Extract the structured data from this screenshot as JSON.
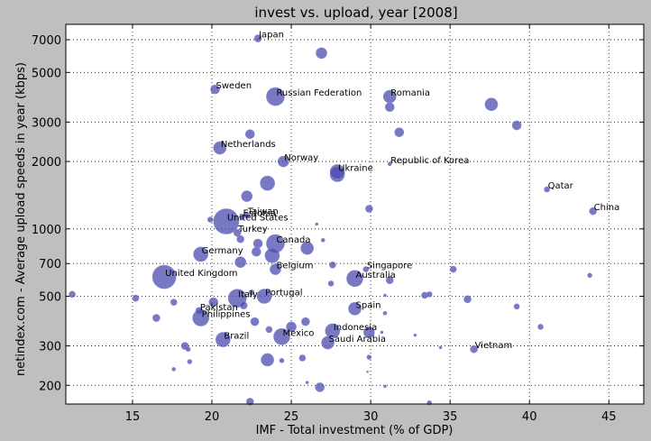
{
  "chart_data": {
    "type": "scatter",
    "title": "invest vs. upload, year [2008]",
    "xlabel": "IMF - Total investment (% of GDP)",
    "ylabel": "netindex.com - Average upload speeds in year (kbps)",
    "xlim": [
      10.8,
      47.2
    ],
    "ylim": [
      165,
      8200
    ],
    "y_scale": "log",
    "grid": true,
    "x_ticks": [
      15,
      20,
      25,
      30,
      35,
      40,
      45
    ],
    "y_ticks": [
      200,
      300,
      500,
      700,
      1000,
      2000,
      3000,
      5000,
      7000
    ],
    "colors": {
      "bubble": "#4b4baf",
      "background": "#bfbfbf",
      "plot_area": "#ffffff"
    },
    "labeled_points": [
      {
        "label": "Japan",
        "x": 22.9,
        "y": 7100,
        "r": 4
      },
      {
        "label": "Sweden",
        "x": 20.2,
        "y": 4200,
        "r": 5
      },
      {
        "label": "Russian Federation",
        "x": 24.0,
        "y": 3900,
        "r": 10
      },
      {
        "label": "Romania",
        "x": 31.2,
        "y": 3900,
        "r": 7
      },
      {
        "label": "Netherlands",
        "x": 20.5,
        "y": 2300,
        "r": 7
      },
      {
        "label": "Norway",
        "x": 24.5,
        "y": 2000,
        "r": 6
      },
      {
        "label": "Republic of Korea",
        "x": 31.2,
        "y": 1950,
        "r": 2
      },
      {
        "label": "Ukraine",
        "x": 27.9,
        "y": 1800,
        "r": 8
      },
      {
        "label": "Qatar",
        "x": 41.1,
        "y": 1500,
        "r": 3
      },
      {
        "label": "China",
        "x": 44.0,
        "y": 1200,
        "r": 4
      },
      {
        "label": "Taiwan",
        "x": 22.2,
        "y": 1150,
        "r": 3
      },
      {
        "label": "Estonia",
        "x": 21.9,
        "y": 1130,
        "r": 3
      },
      {
        "label": "United States",
        "x": 20.9,
        "y": 1080,
        "r": 14
      },
      {
        "label": "Turkey",
        "x": 21.6,
        "y": 960,
        "r": 4
      },
      {
        "label": "Canada",
        "x": 24.0,
        "y": 860,
        "r": 10
      },
      {
        "label": "Germany",
        "x": 19.3,
        "y": 770,
        "r": 8
      },
      {
        "label": "Belgium",
        "x": 24.0,
        "y": 660,
        "r": 6
      },
      {
        "label": "Singapore",
        "x": 29.7,
        "y": 660,
        "r": 3
      },
      {
        "label": "United Kingdom",
        "x": 17.0,
        "y": 610,
        "r": 13
      },
      {
        "label": "Australia",
        "x": 29.0,
        "y": 600,
        "r": 9
      },
      {
        "label": "Italy",
        "x": 21.6,
        "y": 490,
        "r": 10
      },
      {
        "label": "Portugal",
        "x": 23.3,
        "y": 500,
        "r": 8
      },
      {
        "label": "Spain",
        "x": 29.0,
        "y": 440,
        "r": 7
      },
      {
        "label": "Pakistan",
        "x": 19.2,
        "y": 430,
        "r": 4
      },
      {
        "label": "Philippines",
        "x": 19.3,
        "y": 400,
        "r": 9
      },
      {
        "label": "Indonesia",
        "x": 27.6,
        "y": 350,
        "r": 8
      },
      {
        "label": "Mexico",
        "x": 24.4,
        "y": 330,
        "r": 9
      },
      {
        "label": "Brazil",
        "x": 20.7,
        "y": 320,
        "r": 8
      },
      {
        "label": "Saudi Arabia",
        "x": 27.3,
        "y": 310,
        "r": 7
      },
      {
        "label": "Vietnam",
        "x": 36.5,
        "y": 290,
        "r": 4
      }
    ],
    "unlabeled_points": [
      {
        "x": 26.9,
        "y": 6100,
        "r": 6
      },
      {
        "x": 37.6,
        "y": 3600,
        "r": 7
      },
      {
        "x": 31.2,
        "y": 3500,
        "r": 5
      },
      {
        "x": 39.2,
        "y": 2900,
        "r": 5
      },
      {
        "x": 31.8,
        "y": 2700,
        "r": 5
      },
      {
        "x": 22.4,
        "y": 2650,
        "r": 5
      },
      {
        "x": 27.9,
        "y": 1750,
        "r": 8
      },
      {
        "x": 23.5,
        "y": 1600,
        "r": 8
      },
      {
        "x": 22.2,
        "y": 1400,
        "r": 6
      },
      {
        "x": 29.9,
        "y": 1230,
        "r": 4
      },
      {
        "x": 19.9,
        "y": 1100,
        "r": 3
      },
      {
        "x": 26.6,
        "y": 1050,
        "r": 1.5
      },
      {
        "x": 21.8,
        "y": 900,
        "r": 4
      },
      {
        "x": 22.9,
        "y": 860,
        "r": 5
      },
      {
        "x": 26.0,
        "y": 820,
        "r": 7
      },
      {
        "x": 27.0,
        "y": 890,
        "r": 2
      },
      {
        "x": 23.8,
        "y": 760,
        "r": 8
      },
      {
        "x": 22.8,
        "y": 790,
        "r": 5
      },
      {
        "x": 21.8,
        "y": 710,
        "r": 6
      },
      {
        "x": 27.6,
        "y": 690,
        "r": 3.5
      },
      {
        "x": 35.2,
        "y": 660,
        "r": 3.5
      },
      {
        "x": 43.8,
        "y": 620,
        "r": 2.5
      },
      {
        "x": 31.2,
        "y": 590,
        "r": 4
      },
      {
        "x": 27.5,
        "y": 570,
        "r": 3
      },
      {
        "x": 11.2,
        "y": 510,
        "r": 3.5
      },
      {
        "x": 15.2,
        "y": 490,
        "r": 3.5
      },
      {
        "x": 17.6,
        "y": 470,
        "r": 3.5
      },
      {
        "x": 20.1,
        "y": 470,
        "r": 5
      },
      {
        "x": 22.5,
        "y": 520,
        "r": 3
      },
      {
        "x": 30.9,
        "y": 505,
        "r": 1.5
      },
      {
        "x": 33.4,
        "y": 505,
        "r": 3.5
      },
      {
        "x": 33.7,
        "y": 510,
        "r": 3
      },
      {
        "x": 36.1,
        "y": 485,
        "r": 4
      },
      {
        "x": 39.2,
        "y": 450,
        "r": 3
      },
      {
        "x": 22.0,
        "y": 455,
        "r": 4
      },
      {
        "x": 30.9,
        "y": 420,
        "r": 2
      },
      {
        "x": 16.5,
        "y": 400,
        "r": 4
      },
      {
        "x": 22.7,
        "y": 385,
        "r": 4.5
      },
      {
        "x": 25.9,
        "y": 385,
        "r": 4.5
      },
      {
        "x": 25.0,
        "y": 365,
        "r": 5.5
      },
      {
        "x": 23.6,
        "y": 355,
        "r": 3.5
      },
      {
        "x": 40.7,
        "y": 365,
        "r": 3
      },
      {
        "x": 29.9,
        "y": 345,
        "r": 6
      },
      {
        "x": 30.7,
        "y": 345,
        "r": 1.5
      },
      {
        "x": 32.8,
        "y": 335,
        "r": 1.5
      },
      {
        "x": 18.3,
        "y": 300,
        "r": 4
      },
      {
        "x": 18.5,
        "y": 290,
        "r": 2.5
      },
      {
        "x": 34.4,
        "y": 295,
        "r": 1.5
      },
      {
        "x": 18.6,
        "y": 255,
        "r": 2.5
      },
      {
        "x": 23.5,
        "y": 260,
        "r": 7
      },
      {
        "x": 24.4,
        "y": 258,
        "r": 2.5
      },
      {
        "x": 25.7,
        "y": 265,
        "r": 3.5
      },
      {
        "x": 29.9,
        "y": 267,
        "r": 2.5
      },
      {
        "x": 17.6,
        "y": 236,
        "r": 2
      },
      {
        "x": 29.8,
        "y": 230,
        "r": 1
      },
      {
        "x": 26.0,
        "y": 206,
        "r": 1.5
      },
      {
        "x": 26.8,
        "y": 196,
        "r": 5
      },
      {
        "x": 30.9,
        "y": 198,
        "r": 1.5
      },
      {
        "x": 22.4,
        "y": 169,
        "r": 4
      },
      {
        "x": 33.7,
        "y": 167,
        "r": 2.5
      }
    ]
  }
}
